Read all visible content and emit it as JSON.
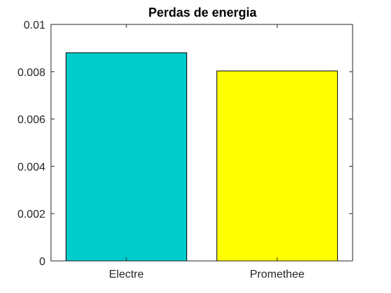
{
  "chart_data": {
    "type": "bar",
    "title": "Perdas de energia",
    "xlabel": "",
    "ylabel": "",
    "categories": [
      "Electre",
      "Promethee"
    ],
    "values": [
      0.0088,
      0.00803
    ],
    "colors": [
      "#00cccc",
      "#ffff00"
    ],
    "ylim": [
      0,
      0.01
    ],
    "yticks": [
      0,
      0.002,
      0.004,
      0.006,
      0.008,
      0.01
    ],
    "ytick_labels": [
      "0",
      "0.002",
      "0.004",
      "0.006",
      "0.008",
      "0.01"
    ],
    "grid": false,
    "legend": "none"
  }
}
